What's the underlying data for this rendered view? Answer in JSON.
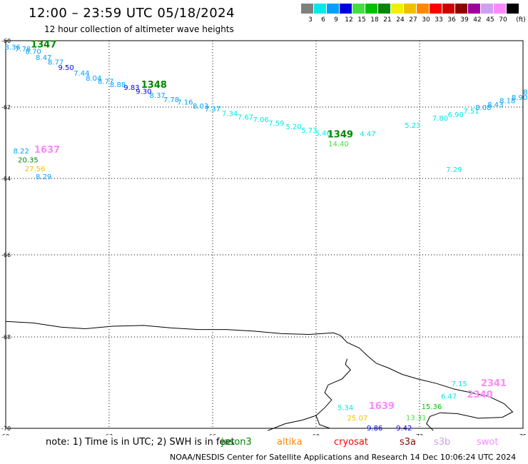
{
  "title": "12:00 – 23:59 UTC 05/18/2024",
  "subtitle": "12 hour collection of altimeter wave heights",
  "colorbar": {
    "unit": "(ft)",
    "bins": [
      {
        "label": "3",
        "color": "#808080"
      },
      {
        "label": "6",
        "color": "#00e8e8"
      },
      {
        "label": "9",
        "color": "#00a0ff"
      },
      {
        "label": "12",
        "color": "#0000e0"
      },
      {
        "label": "15",
        "color": "#40e040"
      },
      {
        "label": "18",
        "color": "#00c000"
      },
      {
        "label": "21",
        "color": "#008800"
      },
      {
        "label": "24",
        "color": "#f0f000"
      },
      {
        "label": "27",
        "color": "#f0c000"
      },
      {
        "label": "30",
        "color": "#ff8800"
      },
      {
        "label": "33",
        "color": "#ff0000"
      },
      {
        "label": "36",
        "color": "#d00000"
      },
      {
        "label": "39",
        "color": "#900000"
      },
      {
        "label": "42",
        "color": "#a000a0"
      },
      {
        "label": "45",
        "color": "#d0a0f0"
      },
      {
        "label": "70",
        "color": "#ff88ff"
      },
      {
        "label": "",
        "color": "#000000"
      }
    ]
  },
  "axes": {
    "lat_labels": [
      "-60",
      "-62",
      "-64",
      "-66",
      "-68",
      "-70"
    ],
    "lon_labels": [
      "60",
      "63",
      "66",
      "69",
      "72",
      "75"
    ]
  },
  "wave_labels": [
    {
      "lon": 60.2,
      "lat": -60.27,
      "text": "8.36",
      "color": "#00a0ff"
    },
    {
      "lon": 60.5,
      "lat": -60.32,
      "text": "7.78",
      "color": "#00a0ff"
    },
    {
      "lon": 60.8,
      "lat": -60.4,
      "text": "8.70",
      "color": "#00a0ff"
    },
    {
      "lon": 61.1,
      "lat": -60.58,
      "text": "8.47",
      "color": "#00a0ff"
    },
    {
      "lon": 61.45,
      "lat": -60.72,
      "text": "8.77",
      "color": "#00a0ff"
    },
    {
      "lon": 61.75,
      "lat": -60.88,
      "text": "9.50",
      "color": "#0000e0"
    },
    {
      "lon": 62.2,
      "lat": -61.05,
      "text": "7.44",
      "color": "#00a0ff"
    },
    {
      "lon": 62.55,
      "lat": -61.2,
      "text": "8.04",
      "color": "#00a0ff"
    },
    {
      "lon": 62.9,
      "lat": -61.3,
      "text": "8.77",
      "color": "#00a0ff"
    },
    {
      "lon": 63.25,
      "lat": -61.4,
      "text": "8.88",
      "color": "#00a0ff"
    },
    {
      "lon": 63.65,
      "lat": -61.48,
      "text": "9.83",
      "color": "#0000e0"
    },
    {
      "lon": 64.0,
      "lat": -61.6,
      "text": "9.30",
      "color": "#0000e0"
    },
    {
      "lon": 64.4,
      "lat": -61.72,
      "text": "8.37",
      "color": "#00a0ff"
    },
    {
      "lon": 64.8,
      "lat": -61.85,
      "text": "7.78",
      "color": "#00a0ff"
    },
    {
      "lon": 65.2,
      "lat": -61.93,
      "text": "7.16",
      "color": "#00a0ff"
    },
    {
      "lon": 65.65,
      "lat": -62.04,
      "text": "8.03",
      "color": "#00a0ff"
    },
    {
      "lon": 66.0,
      "lat": -62.12,
      "text": "7.37",
      "color": "#00a0ff"
    },
    {
      "lon": 66.5,
      "lat": -62.25,
      "text": "7.34",
      "color": "#00e8e8"
    },
    {
      "lon": 66.95,
      "lat": -62.35,
      "text": "7.67",
      "color": "#00e8e8"
    },
    {
      "lon": 67.4,
      "lat": -62.42,
      "text": "7.06",
      "color": "#00e8e8"
    },
    {
      "lon": 67.85,
      "lat": -62.52,
      "text": "7.59",
      "color": "#00e8e8"
    },
    {
      "lon": 68.35,
      "lat": -62.62,
      "text": "5.20",
      "color": "#00e8e8"
    },
    {
      "lon": 68.8,
      "lat": -62.72,
      "text": "5.73",
      "color": "#00e8e8"
    },
    {
      "lon": 69.2,
      "lat": -62.8,
      "text": "5.46",
      "color": "#00e8e8"
    },
    {
      "lon": 69.65,
      "lat": -63.1,
      "text": "14.40",
      "color": "#40e040"
    },
    {
      "lon": 70.5,
      "lat": -62.82,
      "text": "4.47",
      "color": "#00e8e8"
    },
    {
      "lon": 71.8,
      "lat": -62.58,
      "text": "5.23",
      "color": "#00e8e8"
    },
    {
      "lon": 72.6,
      "lat": -62.38,
      "text": "7.80",
      "color": "#00e8e8"
    },
    {
      "lon": 73.05,
      "lat": -62.28,
      "text": "6.90",
      "color": "#00e8e8"
    },
    {
      "lon": 73.5,
      "lat": -62.18,
      "text": "7.51",
      "color": "#00e8e8"
    },
    {
      "lon": 73.85,
      "lat": -62.08,
      "text": "8.08",
      "color": "#00a0ff"
    },
    {
      "lon": 74.2,
      "lat": -62.0,
      "text": "8.43",
      "color": "#00a0ff"
    },
    {
      "lon": 74.55,
      "lat": -61.88,
      "text": "8.18",
      "color": "#00a0ff"
    },
    {
      "lon": 74.9,
      "lat": -61.78,
      "text": "8.90",
      "color": "#00a0ff"
    },
    {
      "lon": 75.1,
      "lat": -61.62,
      "text": "8.",
      "color": "#00a0ff"
    },
    {
      "lon": 73.0,
      "lat": -63.82,
      "text": "7.29",
      "color": "#00e8e8"
    },
    {
      "lon": 60.45,
      "lat": -63.3,
      "text": "8.22",
      "color": "#00a0ff"
    },
    {
      "lon": 60.65,
      "lat": -63.55,
      "text": "20.35",
      "color": "#008800"
    },
    {
      "lon": 60.85,
      "lat": -63.8,
      "text": "27.56",
      "color": "#f0c000"
    },
    {
      "lon": 61.1,
      "lat": -64.02,
      "text": "8.29",
      "color": "#00a0ff"
    },
    {
      "lon": 73.15,
      "lat": -69.08,
      "text": "7.15",
      "color": "#00e8e8"
    },
    {
      "lon": 72.85,
      "lat": -69.35,
      "text": "6.47",
      "color": "#00e8e8"
    },
    {
      "lon": 72.35,
      "lat": -69.58,
      "text": "15.36",
      "color": "#00c000"
    },
    {
      "lon": 71.9,
      "lat": -69.82,
      "text": "13.31",
      "color": "#40e040"
    },
    {
      "lon": 71.55,
      "lat": -70.05,
      "text": "9.42",
      "color": "#0000e0"
    },
    {
      "lon": 70.7,
      "lat": -70.05,
      "text": "9.86",
      "color": "#0000e0"
    },
    {
      "lon": 70.2,
      "lat": -69.83,
      "text": "25.07",
      "color": "#f0c000"
    },
    {
      "lon": 69.85,
      "lat": -69.6,
      "text": "5.34",
      "color": "#00e8e8"
    }
  ],
  "pass_labels": [
    {
      "lon": 61.1,
      "lat": -60.2,
      "text": "1347",
      "color": "#008800"
    },
    {
      "lon": 64.3,
      "lat": -61.42,
      "text": "1348",
      "color": "#008800"
    },
    {
      "lon": 69.7,
      "lat": -62.85,
      "text": "1349",
      "color": "#008800"
    },
    {
      "lon": 61.2,
      "lat": -63.28,
      "text": "1637",
      "color": "#ff88ff"
    },
    {
      "lon": 70.9,
      "lat": -69.58,
      "text": "1639",
      "color": "#ff88ff"
    },
    {
      "lon": 74.15,
      "lat": -69.08,
      "text": "2341",
      "color": "#ff88ff"
    },
    {
      "lon": 73.75,
      "lat": -69.33,
      "text": "2340",
      "color": "#ff88ff"
    }
  ],
  "note": "note: 1) Time is in UTC; 2) SWH is in feet",
  "legend": [
    {
      "name": "jason3",
      "color": "#008800"
    },
    {
      "name": "altika",
      "color": "#ff8800"
    },
    {
      "name": "cryosat",
      "color": "#ff0000"
    },
    {
      "name": "s3a",
      "color": "#900000"
    },
    {
      "name": "s3b",
      "color": "#d0a0f0"
    },
    {
      "name": "swot",
      "color": "#ff88ff"
    }
  ],
  "footer": "NOAA/NESDIS Center for Satellite Applications and Research     14 Dec 10:06:24 UTC 2024"
}
